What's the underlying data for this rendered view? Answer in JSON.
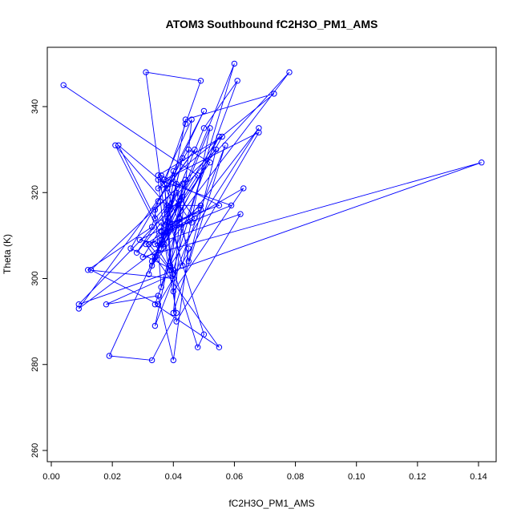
{
  "chart_data": {
    "type": "line",
    "title": "ATOM3 Southbound fC2H3O_PM1_AMS",
    "xlabel": "fC2H3O_PM1_AMS",
    "ylabel": "Theta (K)",
    "xlim": [
      0.0,
      0.14
    ],
    "ylim": [
      260,
      350
    ],
    "xticks": [
      "0.00",
      "0.02",
      "0.04",
      "0.06",
      "0.08",
      "0.10",
      "0.12",
      "0.14"
    ],
    "yticks": [
      "260",
      "280",
      "300",
      "320",
      "340"
    ],
    "grid": false,
    "legend": "none",
    "markers": "open-circle",
    "colors": {
      "series": "#0000ff"
    },
    "series": [
      {
        "x": [
          0.004,
          0.048,
          0.038,
          0.052,
          0.045,
          0.026,
          0.04,
          0.06,
          0.032,
          0.036,
          0.078,
          0.034,
          0.022,
          0.037,
          0.044,
          0.049,
          0.031,
          0.04,
          0.012,
          0.033,
          0.035,
          0.05,
          0.038,
          0.047,
          0.009,
          0.037,
          0.055,
          0.03,
          0.141,
          0.009,
          0.043,
          0.034,
          0.057,
          0.04,
          0.046,
          0.037,
          0.039,
          0.068,
          0.033,
          0.042,
          0.036,
          0.034,
          0.054,
          0.045,
          0.04,
          0.036,
          0.048,
          0.05,
          0.038,
          0.044,
          0.073,
          0.035,
          0.043,
          0.04,
          0.063,
          0.036,
          0.021,
          0.039,
          0.05,
          0.061,
          0.034,
          0.055,
          0.031,
          0.042,
          0.049,
          0.038,
          0.043,
          0.052,
          0.036,
          0.044,
          0.013,
          0.035,
          0.068,
          0.037,
          0.041,
          0.062,
          0.034,
          0.04,
          0.018,
          0.035,
          0.04,
          0.045,
          0.036,
          0.055,
          0.039,
          0.019,
          0.033,
          0.041,
          0.036,
          0.028,
          0.041,
          0.047,
          0.032,
          0.039,
          0.042,
          0.033,
          0.056,
          0.035,
          0.046,
          0.039,
          0.049,
          0.029,
          0.036,
          0.043,
          0.037,
          0.035,
          0.059,
          0.038,
          0.041,
          0.034
        ],
        "y": [
          345,
          324,
          313,
          327,
          330,
          307,
          302,
          350,
          301,
          309,
          348,
          314,
          331,
          322,
          336,
          346,
          348,
          300,
          302,
          312,
          318,
          339,
          321,
          330,
          293,
          308,
          333,
          305,
          327,
          294,
          319,
          289,
          331,
          292,
          337,
          323,
          303,
          335,
          303,
          314,
          298,
          316,
          330,
          304,
          325,
          311,
          284,
          287,
          315,
          337,
          343,
          321,
          322,
          297,
          321,
          310,
          331,
          316,
          335,
          346,
          294,
          284,
          308,
          313,
          317,
          317,
          303,
          335,
          307,
          323,
          302,
          294,
          334,
          323,
          290,
          315,
          308,
          301,
          294,
          296,
          281,
          307,
          324,
          317,
          313,
          282,
          281,
          292,
          313,
          306,
          320,
          314,
          308,
          302,
          318,
          304,
          333,
          324,
          313,
          312,
          316,
          309,
          308,
          328,
          310,
          323,
          317,
          311,
          322,
          305
        ]
      }
    ]
  }
}
